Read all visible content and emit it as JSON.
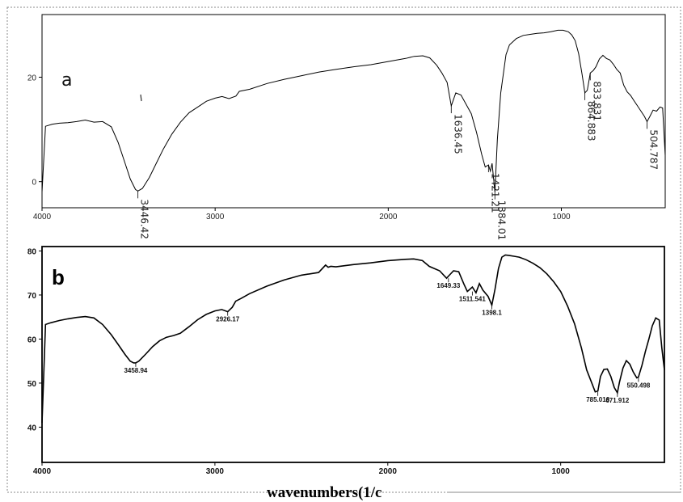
{
  "chart_data": [
    {
      "type": "line",
      "panel_label": "a",
      "xlim": [
        4000,
        400
      ],
      "ylim": [
        -5,
        32
      ],
      "x_ticks": [
        4000,
        3000,
        2000,
        1000
      ],
      "y_ticks": [
        0,
        20
      ],
      "grid": false,
      "series": [
        {
          "x": [
            4000,
            3980,
            3940,
            3900,
            3850,
            3800,
            3750,
            3700,
            3650,
            3600,
            3560,
            3520,
            3490,
            3460,
            3446,
            3420,
            3380,
            3340,
            3300,
            3250,
            3200,
            3150,
            3100,
            3050,
            3000,
            2960,
            2920,
            2880,
            2860,
            2800,
            2700,
            2600,
            2500,
            2400,
            2300,
            2200,
            2100,
            2000,
            1900,
            1850,
            1800,
            1760,
            1720,
            1690,
            1660,
            1636,
            1610,
            1580,
            1550,
            1520,
            1490,
            1460,
            1440,
            1421,
            1410,
            1400,
            1384,
            1370,
            1350,
            1320,
            1300,
            1260,
            1220,
            1180,
            1140,
            1100,
            1060,
            1020,
            990,
            960,
            940,
            920,
            900,
            880,
            864,
            850,
            833,
            815,
            800,
            780,
            760,
            740,
            720,
            700,
            680,
            660,
            640,
            620,
            600,
            580,
            560,
            540,
            520,
            505,
            490,
            470,
            450,
            430,
            415,
            400
          ],
          "y": [
            -2,
            10.6,
            11,
            11.2,
            11.3,
            11.5,
            11.8,
            11.4,
            11.5,
            10.5,
            7.5,
            3.5,
            0.5,
            -1.5,
            -1.8,
            -1.3,
            0.8,
            3.5,
            6.2,
            9.1,
            11.4,
            13.2,
            14.3,
            15.4,
            16,
            16.3,
            15.9,
            16.4,
            17.3,
            17.7,
            18.8,
            19.6,
            20.3,
            21,
            21.5,
            22,
            22.4,
            23,
            23.6,
            24,
            24.1,
            23.7,
            22.3,
            20.8,
            19,
            14.5,
            17,
            16.6,
            14.8,
            13,
            9.4,
            5.2,
            2.8,
            3.2,
            2,
            3.5,
            -2,
            8,
            17,
            24.3,
            26.2,
            27.4,
            28,
            28.2,
            28.4,
            28.5,
            28.7,
            29,
            29,
            28.7,
            28.1,
            27,
            24.5,
            20.5,
            17,
            17.5,
            20.8,
            21.3,
            22,
            23.5,
            24.2,
            23.6,
            23.3,
            22.5,
            21.5,
            20.8,
            18.5,
            17.2,
            16.5,
            15.5,
            14.5,
            13.5,
            12.5,
            11.5,
            12.4,
            13.7,
            13.5,
            14.3,
            14.1,
            5
          ]
        }
      ],
      "annotations": [
        {
          "label": "3446.42",
          "x": 3446,
          "y": -1.8
        },
        {
          "label": "1636.45",
          "x": 1636,
          "y": 14.5
        },
        {
          "label": "1421.21",
          "x": 1421,
          "y": 3.2
        },
        {
          "label": "1384.01",
          "x": 1384,
          "y": -2
        },
        {
          "label": "864.883",
          "x": 864,
          "y": 17
        },
        {
          "label": "833.831",
          "x": 833,
          "y": 20.8
        },
        {
          "label": "504.787",
          "x": 505,
          "y": 11.5
        }
      ]
    },
    {
      "type": "line",
      "panel_label": "b",
      "xlim": [
        4000,
        400
      ],
      "ylim": [
        32,
        81
      ],
      "x_ticks": [
        4000,
        3000,
        2000,
        1000
      ],
      "y_ticks": [
        40,
        50,
        60,
        70,
        80
      ],
      "grid": false,
      "series": [
        {
          "x": [
            4000,
            3980,
            3950,
            3900,
            3850,
            3800,
            3750,
            3700,
            3650,
            3600,
            3560,
            3520,
            3490,
            3470,
            3458,
            3440,
            3400,
            3360,
            3320,
            3280,
            3240,
            3200,
            3150,
            3100,
            3050,
            3000,
            2960,
            2926,
            2900,
            2880,
            2850,
            2800,
            2700,
            2600,
            2500,
            2400,
            2360,
            2345,
            2330,
            2300,
            2200,
            2100,
            2000,
            1900,
            1850,
            1800,
            1760,
            1700,
            1660,
            1649,
            1620,
            1590,
            1560,
            1540,
            1511,
            1490,
            1470,
            1450,
            1420,
            1398,
            1380,
            1360,
            1340,
            1320,
            1300,
            1270,
            1240,
            1200,
            1160,
            1120,
            1080,
            1040,
            1000,
            960,
            920,
            880,
            850,
            820,
            800,
            785,
            770,
            750,
            730,
            710,
            690,
            672,
            660,
            640,
            620,
            600,
            580,
            560,
            550,
            530,
            510,
            490,
            470,
            450,
            430,
            415,
            400
          ],
          "y": [
            41,
            63.3,
            63.7,
            64.2,
            64.6,
            64.9,
            65.1,
            64.8,
            63.3,
            61,
            58.8,
            56.5,
            55,
            54.6,
            54.6,
            55,
            56.6,
            58.3,
            59.6,
            60.4,
            60.8,
            61.3,
            62.8,
            64.4,
            65.6,
            66.4,
            66.7,
            66.2,
            67.2,
            68.6,
            69.2,
            70.3,
            72,
            73.4,
            74.5,
            75.1,
            76.8,
            76.3,
            76.5,
            76.4,
            76.9,
            77.3,
            77.8,
            78.1,
            78.2,
            77.8,
            76.5,
            75.5,
            73.8,
            74.3,
            75.5,
            75.3,
            72.5,
            70.8,
            71.8,
            70.5,
            72.6,
            71.1,
            69.7,
            67.7,
            71.3,
            76,
            78.6,
            79.1,
            79,
            78.8,
            78.6,
            78,
            77.2,
            76.2,
            74.8,
            73,
            70.8,
            67.5,
            63.5,
            58,
            53,
            50,
            48,
            48.2,
            51.5,
            53.1,
            53.2,
            51.5,
            49,
            47.8,
            50.2,
            53.4,
            55.1,
            54.3,
            52.5,
            51.2,
            51.4,
            54,
            57.2,
            60,
            63,
            64.8,
            64.3,
            58,
            53
          ]
        }
      ],
      "annotations": [
        {
          "label": "2926.17",
          "x": 2926,
          "y": 66.2
        },
        {
          "label": "3458.94",
          "x": 3458,
          "y": 54.6
        },
        {
          "label": "1649.33",
          "x": 1649,
          "y": 73.8
        },
        {
          "label": "1511.541",
          "x": 1511,
          "y": 70.8
        },
        {
          "label": "1398.1",
          "x": 1398,
          "y": 67.7
        },
        {
          "label": "785.016",
          "x": 785,
          "y": 48
        },
        {
          "label": "671.912",
          "x": 672,
          "y": 47.8
        },
        {
          "label": "550.498",
          "x": 550,
          "y": 51.2
        }
      ]
    }
  ],
  "xlabel": "wavenumbers(1/c"
}
